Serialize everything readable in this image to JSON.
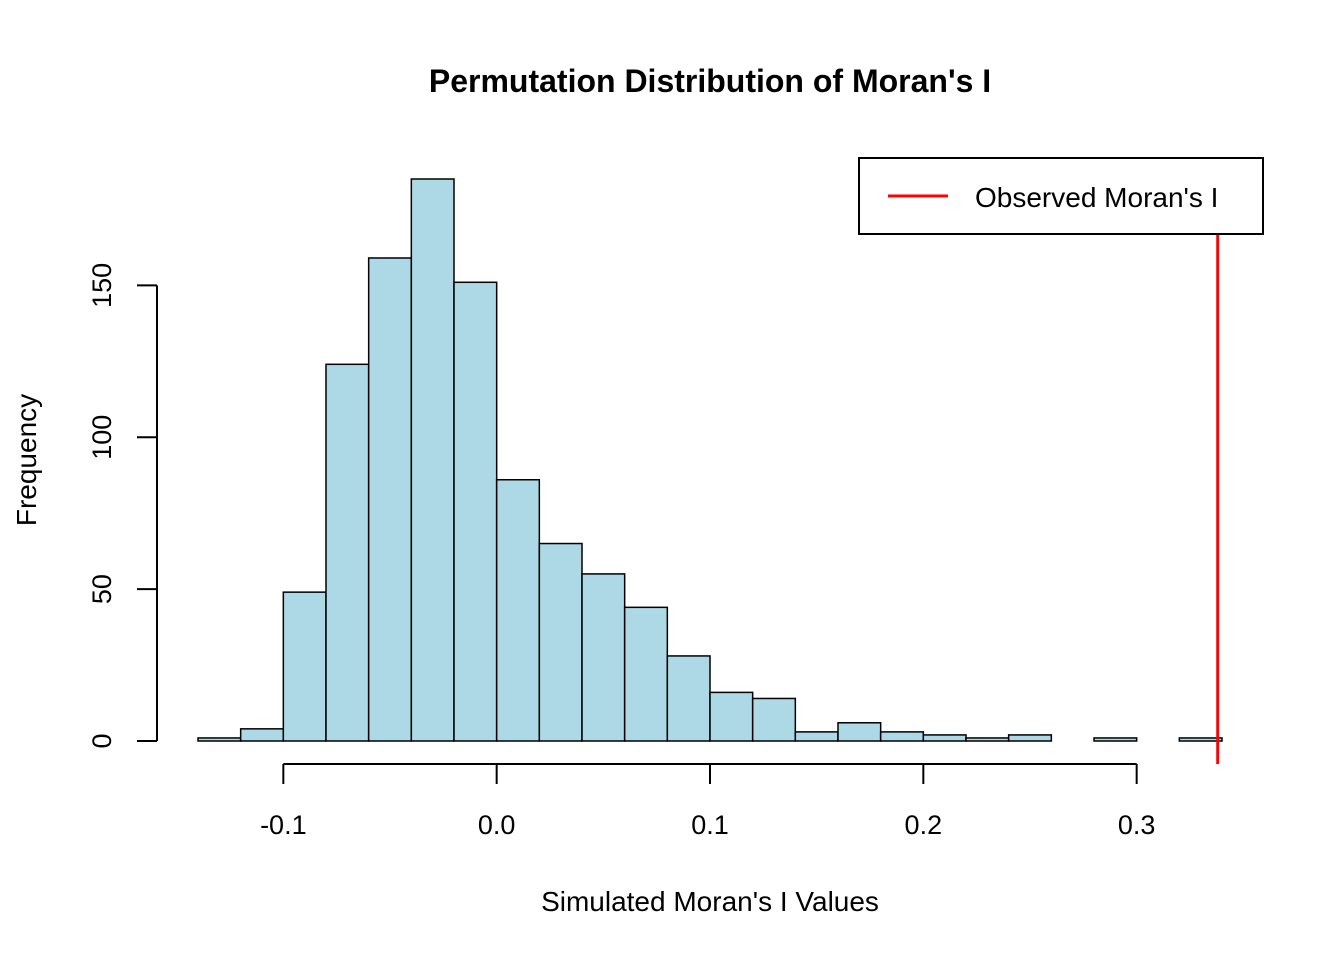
{
  "chart_data": {
    "type": "bar",
    "title": "Permutation Distribution of Moran's I",
    "xlabel": "Simulated Moran's I Values",
    "ylabel": "Frequency",
    "bin_edges": [
      -0.14,
      -0.12,
      -0.1,
      -0.08,
      -0.06,
      -0.04,
      -0.02,
      0.0,
      0.02,
      0.04,
      0.06,
      0.08,
      0.1,
      0.12,
      0.14,
      0.16,
      0.18,
      0.2,
      0.22,
      0.24,
      0.26,
      0.28,
      0.3,
      0.32,
      0.34
    ],
    "values": [
      1,
      4,
      49,
      124,
      159,
      185,
      151,
      86,
      65,
      55,
      44,
      28,
      16,
      14,
      3,
      6,
      3,
      2,
      1,
      2,
      0,
      1,
      0,
      1
    ],
    "bar_color": "#ADD8E6",
    "bar_border_color": "#000000",
    "x_ticks": [
      -0.1,
      0.0,
      0.1,
      0.2,
      0.3
    ],
    "x_tick_labels": [
      "-0.1",
      "0.0",
      "0.1",
      "0.2",
      "0.3"
    ],
    "y_ticks": [
      0,
      50,
      100,
      150
    ],
    "y_tick_labels": [
      "0",
      "50",
      "100",
      "150"
    ],
    "xlim": [
      -0.14,
      0.34
    ],
    "ylim": [
      0,
      185
    ],
    "observed_value": 0.338,
    "observed_line_color": "#FF0000",
    "legend": {
      "position": "top-right",
      "entries": [
        {
          "label": "Observed Moran's I",
          "color": "#FF0000"
        }
      ]
    },
    "grid": false
  }
}
